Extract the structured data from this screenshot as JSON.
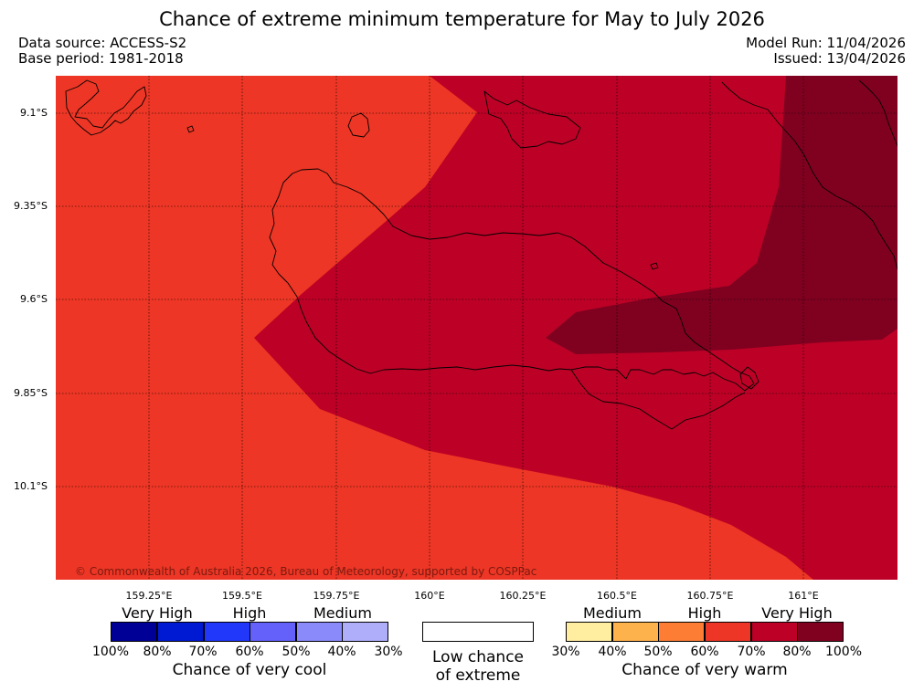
{
  "title": "Chance of extreme minimum temperature for May to July 2026",
  "meta": {
    "data_source": "Data source: ACCESS-S2",
    "base_period": "Base period: 1981-2018",
    "model_run": "Model Run: 11/04/2026",
    "issued": "Issued: 13/04/2026"
  },
  "map": {
    "lat_labels": [
      "9.1°S",
      "9.35°S",
      "9.6°S",
      "9.85°S",
      "10.1°S"
    ],
    "lon_labels": [
      "159.25°E",
      "159.5°E",
      "159.75°E",
      "160°E",
      "160.25°E",
      "160.5°E",
      "160.75°E",
      "161°E"
    ],
    "copyright": "© Commonwealth of Australia 2026, Bureau of Meteorology, supported by COSPPac",
    "colors": {
      "high": "#ed3625",
      "very_high": "#bd0026",
      "very_high_dark": "#800020",
      "coast": "#000000"
    }
  },
  "legend": {
    "cool": {
      "categories": [
        "Very High",
        "High",
        "Medium"
      ],
      "percent_labels": [
        "100%",
        "80%",
        "70%",
        "60%",
        "50%",
        "40%",
        "30%"
      ],
      "colors": [
        "#000096",
        "#0019d2",
        "#2137fa",
        "#6461fa",
        "#8a8afa",
        "#aeaefa"
      ],
      "title": "Chance of very cool"
    },
    "low": {
      "title_line1": "Low chance",
      "title_line2": "of extreme"
    },
    "warm": {
      "categories": [
        "Medium",
        "High",
        "Very High"
      ],
      "percent_labels": [
        "30%",
        "40%",
        "50%",
        "60%",
        "70%",
        "80%",
        "100%"
      ],
      "colors": [
        "#ffeda0",
        "#feb24c",
        "#fd7d34",
        "#ed3625",
        "#bd0026",
        "#800020"
      ],
      "title": "Chance of very warm"
    }
  }
}
